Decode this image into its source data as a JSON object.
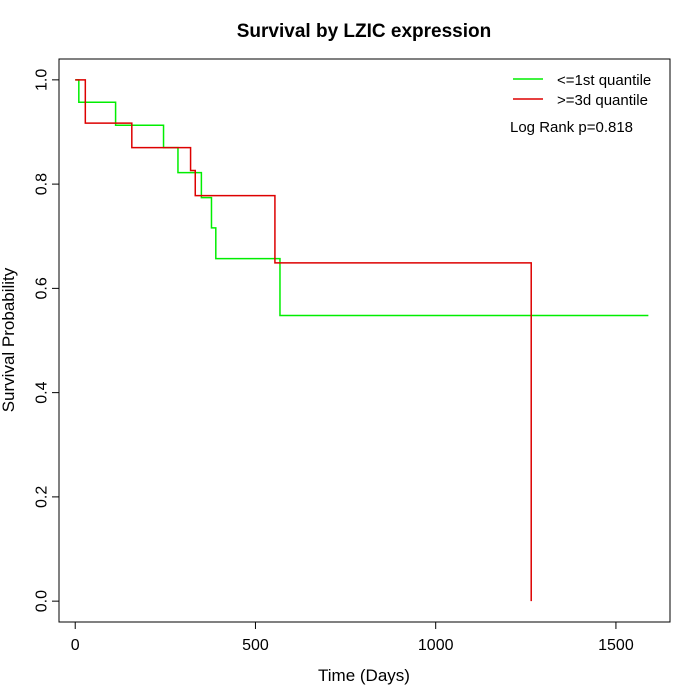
{
  "chart_data": {
    "type": "line",
    "step": true,
    "title": "Survival by LZIC expression",
    "xlabel": "Time (Days)",
    "ylabel": "Survival Probability",
    "xlim": [
      -45,
      1650
    ],
    "ylim": [
      -0.04,
      1.04
    ],
    "xticks": [
      0,
      500,
      1000,
      1500
    ],
    "yticks": [
      0.0,
      0.2,
      0.4,
      0.6,
      0.8,
      1.0
    ],
    "xtick_labels": [
      "0",
      "500",
      "1000",
      "1500"
    ],
    "ytick_labels": [
      "0.0",
      "0.2",
      "0.4",
      "0.6",
      "0.8",
      "1.0"
    ],
    "grid": false,
    "legend_position": "top-right",
    "annotation": "Log Rank p=0.818",
    "series": [
      {
        "name": "<=1st quantile",
        "color": "#00ee00",
        "points": [
          [
            0,
            1.0
          ],
          [
            10,
            0.957
          ],
          [
            112,
            0.913
          ],
          [
            245,
            0.87
          ],
          [
            285,
            0.822
          ],
          [
            350,
            0.774
          ],
          [
            378,
            0.716
          ],
          [
            390,
            0.657
          ],
          [
            568,
            0.548
          ],
          [
            1590,
            0.548
          ]
        ]
      },
      {
        "name": ">=3d quantile",
        "color": "#dd0000",
        "points": [
          [
            0,
            1.0
          ],
          [
            28,
            0.917
          ],
          [
            157,
            0.87
          ],
          [
            320,
            0.826
          ],
          [
            333,
            0.778
          ],
          [
            554,
            0.649
          ],
          [
            1265,
            0.649
          ],
          [
            1265,
            0.0
          ]
        ]
      }
    ]
  }
}
